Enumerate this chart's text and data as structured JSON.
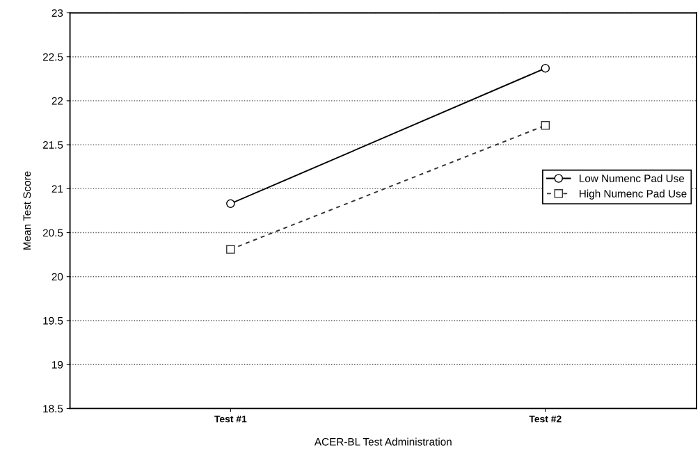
{
  "chart_data": {
    "type": "line",
    "xlabel": "ACER-BL Test Administration",
    "ylabel": "Mean Test Score",
    "categories": [
      "Test #1",
      "Test #2"
    ],
    "series": [
      {
        "name": "Low Numenc Pad Use",
        "color": "#000000",
        "values": [
          20.83,
          22.37
        ],
        "marker": "circle",
        "line_style": "solid"
      },
      {
        "name": "High Numenc Pad Use",
        "color": "#333333",
        "values": [
          20.31,
          21.72
        ],
        "marker": "square",
        "line_style": "dashed"
      }
    ],
    "ylim": [
      18.5,
      23
    ],
    "yticks": [
      18.5,
      19,
      19.5,
      20,
      20.5,
      21,
      21.5,
      22,
      22.5,
      23
    ],
    "grid": "y",
    "legend": "right"
  }
}
